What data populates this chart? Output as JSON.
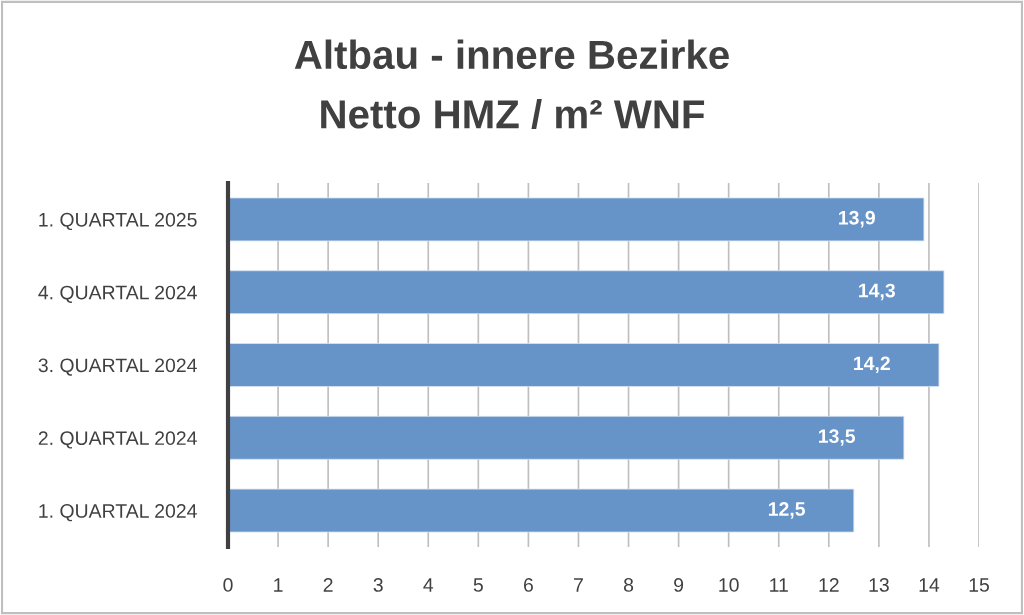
{
  "chart_data": {
    "type": "bar",
    "orientation": "horizontal",
    "title": "Altbau - innere Bezirke\nNetto HMZ / m² WNF",
    "categories": [
      "1. QUARTAL 2025",
      "4. QUARTAL 2024",
      "3. QUARTAL 2024",
      "2. QUARTAL 2024",
      "1. QUARTAL 2024"
    ],
    "values": [
      13.9,
      14.3,
      14.2,
      13.5,
      12.5
    ],
    "value_labels": [
      "13,9",
      "14,3",
      "14,2",
      "13,5",
      "12,5"
    ],
    "color": "#6794c8",
    "xlim": [
      0,
      15
    ],
    "xticks": [
      0,
      1,
      2,
      3,
      4,
      5,
      6,
      7,
      8,
      9,
      10,
      11,
      12,
      13,
      14,
      15
    ],
    "grid": "x",
    "legend": false
  }
}
